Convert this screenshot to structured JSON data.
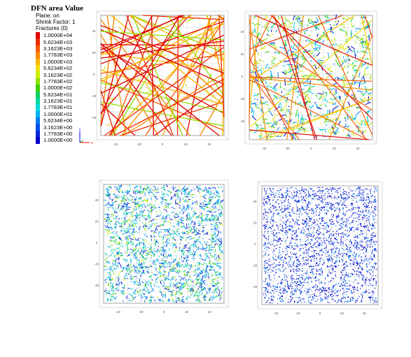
{
  "legend": {
    "title": "DFN area Value",
    "plane": "Plane: on",
    "shrink": "Shrink Factor: 1",
    "fractures": "Fractures (0)",
    "entries": [
      {
        "label": "1.0000E+04",
        "color": "#e00000"
      },
      {
        "label": "5.6234E+03",
        "color": "#ee2a00"
      },
      {
        "label": "3.1623E+03",
        "color": "#f45a00"
      },
      {
        "label": "1.7783E+03",
        "color": "#f88a00"
      },
      {
        "label": "1.0000E+03",
        "color": "#f8b800"
      },
      {
        "label": "5.6234E+02",
        "color": "#f0e000"
      },
      {
        "label": "3.1623E+02",
        "color": "#c8f000"
      },
      {
        "label": "1.7783E+02",
        "color": "#8ee000"
      },
      {
        "label": "1.0000E+02",
        "color": "#40d000"
      },
      {
        "label": "5.6234E+01",
        "color": "#10d060"
      },
      {
        "label": "3.1623E+01",
        "color": "#00d8a0"
      },
      {
        "label": "1.7783E+01",
        "color": "#00d8d8"
      },
      {
        "label": "1.0000E+01",
        "color": "#00b0f0"
      },
      {
        "label": "5.6234E+00",
        "color": "#0080f0"
      },
      {
        "label": "3.1623E+00",
        "color": "#0050e8"
      },
      {
        "label": "1.7783E+00",
        "color": "#0028d8"
      },
      {
        "label": "1.0000E+00",
        "color": "#0000c8"
      }
    ]
  },
  "axes_widget": {
    "x_label": "x",
    "z_label": "z",
    "x_color": "#ff0000",
    "z_color": "#0000ff"
  },
  "panels": [
    {
      "name": "panel-top-left",
      "x_ticks": [
        "-40",
        "-20",
        "0",
        "20",
        "40"
      ],
      "y_ticks": [
        "40",
        "20",
        "0",
        "-20",
        "-40"
      ],
      "fractures": "long-red"
    },
    {
      "name": "panel-top-right",
      "x_ticks": [
        "-40",
        "-20",
        "0",
        "20",
        "40"
      ],
      "y_ticks": [
        "40",
        "20",
        "0",
        "-20",
        "-40"
      ],
      "fractures": "mixed"
    },
    {
      "name": "panel-bottom-left",
      "x_ticks": [
        "-40",
        "-20",
        "0",
        "20",
        "40"
      ],
      "y_ticks": [
        "40",
        "20",
        "0",
        "-20",
        "-40"
      ],
      "fractures": "small-cyan-blue"
    },
    {
      "name": "panel-bottom-right",
      "x_ticks": [
        "-40",
        "-20",
        "0",
        "20",
        "40"
      ],
      "y_ticks": [
        "40",
        "20",
        "0",
        "-20",
        "-40"
      ],
      "fractures": "tiny-blue"
    }
  ]
}
